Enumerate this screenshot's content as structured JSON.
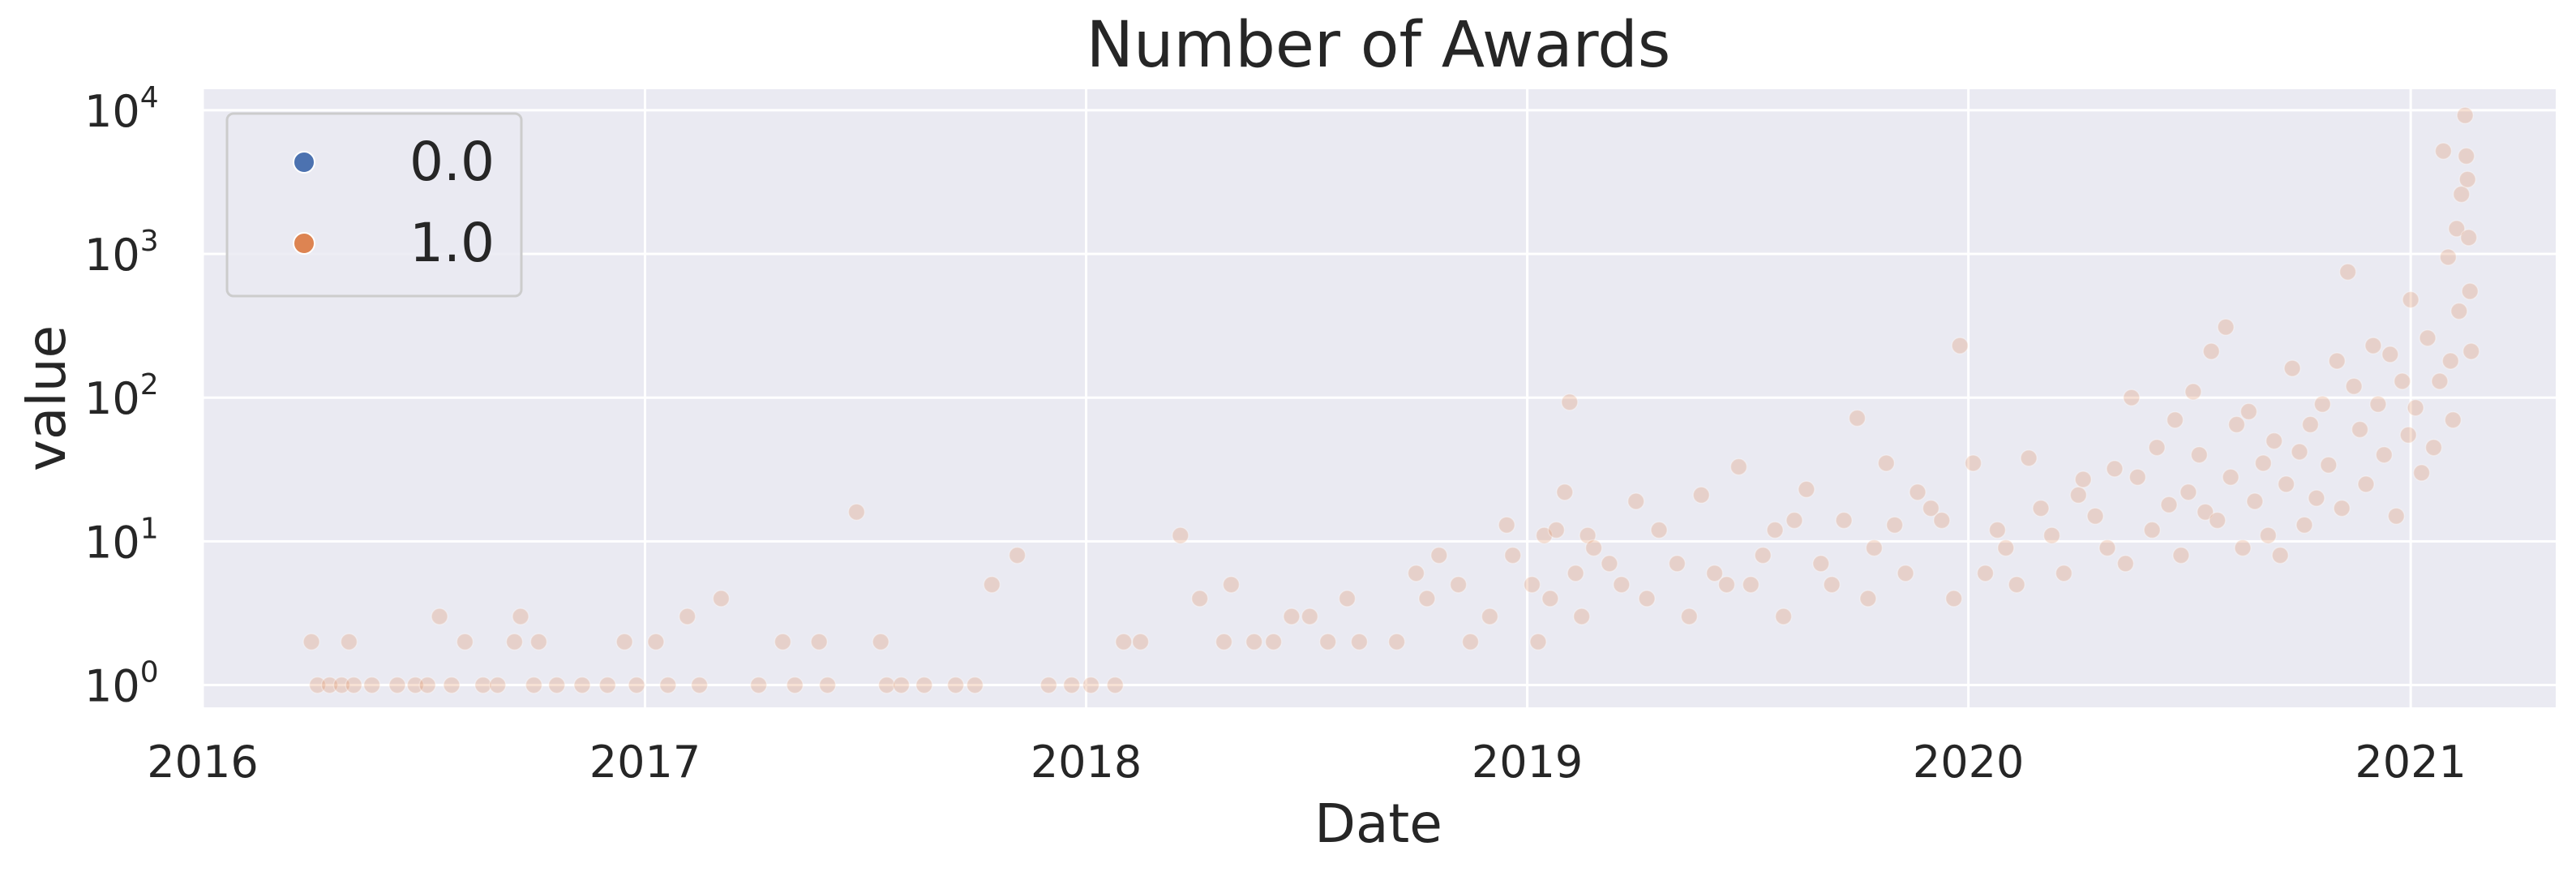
{
  "chart_data": {
    "type": "scatter",
    "title": "Number of Awards",
    "xlabel": "Date",
    "ylabel": "value",
    "x_scale": "time",
    "y_scale": "log",
    "xlim": [
      "2016-01-01",
      "2021-05-01"
    ],
    "ylim": [
      0.7,
      14000
    ],
    "x_ticks": [
      "2016",
      "2017",
      "2018",
      "2019",
      "2020",
      "2021"
    ],
    "y_ticks": [
      {
        "base": "10",
        "exp": "0"
      },
      {
        "base": "10",
        "exp": "1"
      },
      {
        "base": "10",
        "exp": "2"
      },
      {
        "base": "10",
        "exp": "3"
      },
      {
        "base": "10",
        "exp": "4"
      }
    ],
    "grid": true,
    "legend_position": "top-left",
    "series": [
      {
        "name": "0.0",
        "color": "#4c72b0",
        "points": []
      },
      {
        "name": "1.0",
        "color": "#dd8452",
        "points": [
          [
            "2016-03-31",
            2
          ],
          [
            "2016-04-05",
            1
          ],
          [
            "2016-04-15",
            1
          ],
          [
            "2016-04-25",
            1
          ],
          [
            "2016-05-01",
            2
          ],
          [
            "2016-05-05",
            1
          ],
          [
            "2016-05-20",
            1
          ],
          [
            "2016-06-10",
            1
          ],
          [
            "2016-06-25",
            1
          ],
          [
            "2016-07-05",
            1
          ],
          [
            "2016-07-15",
            3
          ],
          [
            "2016-07-25",
            1
          ],
          [
            "2016-08-05",
            2
          ],
          [
            "2016-08-20",
            1
          ],
          [
            "2016-09-01",
            1
          ],
          [
            "2016-09-15",
            2
          ],
          [
            "2016-09-20",
            3
          ],
          [
            "2016-10-01",
            1
          ],
          [
            "2016-10-05",
            2
          ],
          [
            "2016-10-20",
            1
          ],
          [
            "2016-11-10",
            1
          ],
          [
            "2016-12-01",
            1
          ],
          [
            "2016-12-15",
            2
          ],
          [
            "2016-12-25",
            1
          ],
          [
            "2017-01-10",
            2
          ],
          [
            "2017-01-20",
            1
          ],
          [
            "2017-02-05",
            3
          ],
          [
            "2017-02-15",
            1
          ],
          [
            "2017-03-05",
            4
          ],
          [
            "2017-04-05",
            1
          ],
          [
            "2017-04-25",
            2
          ],
          [
            "2017-05-05",
            1
          ],
          [
            "2017-05-25",
            2
          ],
          [
            "2017-06-01",
            1
          ],
          [
            "2017-06-25",
            16
          ],
          [
            "2017-07-15",
            2
          ],
          [
            "2017-07-20",
            1
          ],
          [
            "2017-08-01",
            1
          ],
          [
            "2017-08-20",
            1
          ],
          [
            "2017-09-15",
            1
          ],
          [
            "2017-10-01",
            1
          ],
          [
            "2017-10-15",
            5
          ],
          [
            "2017-11-05",
            8
          ],
          [
            "2017-12-01",
            1
          ],
          [
            "2017-12-20",
            1
          ],
          [
            "2018-01-05",
            1
          ],
          [
            "2018-01-25",
            1
          ],
          [
            "2018-02-01",
            2
          ],
          [
            "2018-02-15",
            2
          ],
          [
            "2018-03-20",
            11
          ],
          [
            "2018-04-05",
            4
          ],
          [
            "2018-04-25",
            2
          ],
          [
            "2018-05-01",
            5
          ],
          [
            "2018-05-20",
            2
          ],
          [
            "2018-06-05",
            2
          ],
          [
            "2018-06-20",
            3
          ],
          [
            "2018-07-05",
            3
          ],
          [
            "2018-07-20",
            2
          ],
          [
            "2018-08-05",
            4
          ],
          [
            "2018-08-15",
            2
          ],
          [
            "2018-09-15",
            2
          ],
          [
            "2018-10-01",
            6
          ],
          [
            "2018-10-10",
            4
          ],
          [
            "2018-10-20",
            8
          ],
          [
            "2018-11-05",
            5
          ],
          [
            "2018-11-15",
            2
          ],
          [
            "2018-12-01",
            3
          ],
          [
            "2018-12-15",
            13
          ],
          [
            "2018-12-20",
            8
          ],
          [
            "2019-01-05",
            5
          ],
          [
            "2019-01-10",
            2
          ],
          [
            "2019-01-15",
            11
          ],
          [
            "2019-01-20",
            4
          ],
          [
            "2019-01-25",
            12
          ],
          [
            "2019-02-01",
            22
          ],
          [
            "2019-02-05",
            93
          ],
          [
            "2019-02-10",
            6
          ],
          [
            "2019-02-15",
            3
          ],
          [
            "2019-02-20",
            11
          ],
          [
            "2019-02-25",
            9
          ],
          [
            "2019-03-10",
            7
          ],
          [
            "2019-03-20",
            5
          ],
          [
            "2019-04-01",
            19
          ],
          [
            "2019-04-10",
            4
          ],
          [
            "2019-04-20",
            12
          ],
          [
            "2019-05-05",
            7
          ],
          [
            "2019-05-15",
            3
          ],
          [
            "2019-05-25",
            21
          ],
          [
            "2019-06-05",
            6
          ],
          [
            "2019-06-15",
            5
          ],
          [
            "2019-06-25",
            33
          ],
          [
            "2019-07-05",
            5
          ],
          [
            "2019-07-15",
            8
          ],
          [
            "2019-07-25",
            12
          ],
          [
            "2019-08-01",
            3
          ],
          [
            "2019-08-10",
            14
          ],
          [
            "2019-08-20",
            23
          ],
          [
            "2019-09-01",
            7
          ],
          [
            "2019-09-10",
            5
          ],
          [
            "2019-09-20",
            14
          ],
          [
            "2019-10-01",
            72
          ],
          [
            "2019-10-10",
            4
          ],
          [
            "2019-10-15",
            9
          ],
          [
            "2019-10-25",
            35
          ],
          [
            "2019-11-01",
            13
          ],
          [
            "2019-11-10",
            6
          ],
          [
            "2019-11-20",
            22
          ],
          [
            "2019-12-01",
            17
          ],
          [
            "2019-12-10",
            14
          ],
          [
            "2019-12-20",
            4
          ],
          [
            "2019-12-25",
            230
          ],
          [
            "2020-01-05",
            35
          ],
          [
            "2020-01-15",
            6
          ],
          [
            "2020-01-25",
            12
          ],
          [
            "2020-02-01",
            9
          ],
          [
            "2020-02-10",
            5
          ],
          [
            "2020-02-20",
            38
          ],
          [
            "2020-03-01",
            17
          ],
          [
            "2020-03-10",
            11
          ],
          [
            "2020-03-20",
            6
          ],
          [
            "2020-04-01",
            21
          ],
          [
            "2020-04-05",
            27
          ],
          [
            "2020-04-15",
            15
          ],
          [
            "2020-04-25",
            9
          ],
          [
            "2020-05-01",
            32
          ],
          [
            "2020-05-10",
            7
          ],
          [
            "2020-05-15",
            100
          ],
          [
            "2020-05-20",
            28
          ],
          [
            "2020-06-01",
            12
          ],
          [
            "2020-06-05",
            45
          ],
          [
            "2020-06-15",
            18
          ],
          [
            "2020-06-20",
            70
          ],
          [
            "2020-06-25",
            8
          ],
          [
            "2020-07-01",
            22
          ],
          [
            "2020-07-05",
            110
          ],
          [
            "2020-07-10",
            40
          ],
          [
            "2020-07-15",
            16
          ],
          [
            "2020-07-20",
            210
          ],
          [
            "2020-07-25",
            14
          ],
          [
            "2020-08-01",
            310
          ],
          [
            "2020-08-05",
            28
          ],
          [
            "2020-08-10",
            65
          ],
          [
            "2020-08-15",
            9
          ],
          [
            "2020-08-20",
            80
          ],
          [
            "2020-08-25",
            19
          ],
          [
            "2020-09-01",
            35
          ],
          [
            "2020-09-05",
            11
          ],
          [
            "2020-09-10",
            50
          ],
          [
            "2020-09-15",
            8
          ],
          [
            "2020-09-20",
            25
          ],
          [
            "2020-09-25",
            160
          ],
          [
            "2020-10-01",
            42
          ],
          [
            "2020-10-05",
            13
          ],
          [
            "2020-10-10",
            65
          ],
          [
            "2020-10-15",
            20
          ],
          [
            "2020-10-20",
            90
          ],
          [
            "2020-10-25",
            34
          ],
          [
            "2020-11-01",
            180
          ],
          [
            "2020-11-05",
            17
          ],
          [
            "2020-11-10",
            750
          ],
          [
            "2020-11-15",
            120
          ],
          [
            "2020-11-20",
            60
          ],
          [
            "2020-11-25",
            25
          ],
          [
            "2020-12-01",
            230
          ],
          [
            "2020-12-05",
            90
          ],
          [
            "2020-12-10",
            40
          ],
          [
            "2020-12-15",
            200
          ],
          [
            "2020-12-20",
            15
          ],
          [
            "2020-12-25",
            130
          ],
          [
            "2020-12-30",
            55
          ],
          [
            "2021-01-01",
            480
          ],
          [
            "2021-01-05",
            85
          ],
          [
            "2021-01-10",
            30
          ],
          [
            "2021-01-15",
            260
          ],
          [
            "2021-01-20",
            45
          ],
          [
            "2021-01-25",
            130
          ],
          [
            "2021-01-28",
            5200
          ],
          [
            "2021-02-01",
            950
          ],
          [
            "2021-02-03",
            180
          ],
          [
            "2021-02-05",
            70
          ],
          [
            "2021-02-08",
            1500
          ],
          [
            "2021-02-10",
            400
          ],
          [
            "2021-02-12",
            2600
          ],
          [
            "2021-02-15",
            9200
          ],
          [
            "2021-02-16",
            4800
          ],
          [
            "2021-02-17",
            3300
          ],
          [
            "2021-02-18",
            1300
          ],
          [
            "2021-02-19",
            550
          ],
          [
            "2021-02-20",
            210
          ]
        ]
      }
    ]
  }
}
